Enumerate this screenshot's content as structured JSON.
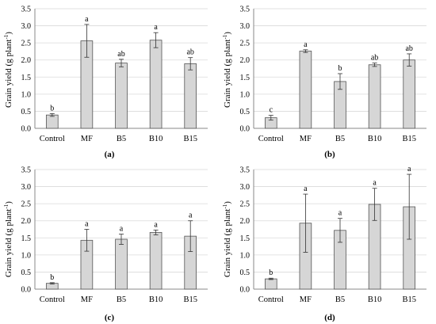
{
  "figure": {
    "panels": [
      {
        "label": "(a)",
        "ylabel_main": "Grain yield (g plant",
        "ylabel_sup": "-1",
        "ylabel_close": ")"
      },
      {
        "label": "(b)",
        "ylabel_main": "Grain yield (g plant",
        "ylabel_sup": "-1",
        "ylabel_close": ")"
      },
      {
        "label": "(c)",
        "ylabel_main": "Grain yield (g plant",
        "ylabel_sup": "-1",
        "ylabel_close": ")"
      },
      {
        "label": "(d)",
        "ylabel_main": "Grain yield (g plant",
        "ylabel_sup": "-1",
        "ylabel_close": ")"
      }
    ]
  },
  "colors": {
    "bar_fill": "#d6d6d6",
    "bar_stroke": "#555555",
    "axis": "#8a8a8a",
    "grid": "#d9d9d9",
    "text": "#000000"
  },
  "chart_data": [
    {
      "type": "bar",
      "categories": [
        "Control",
        "MF",
        "B5",
        "B10",
        "B15"
      ],
      "values": [
        0.39,
        2.56,
        1.91,
        2.58,
        1.89
      ],
      "errors": [
        0.04,
        0.48,
        0.11,
        0.22,
        0.18
      ],
      "letters": [
        "b",
        "a",
        "ab",
        "a",
        "ab"
      ],
      "ylim": [
        0,
        3.5
      ],
      "yticks": [
        "0.0",
        "0.5",
        "1.0",
        "1.5",
        "2.0",
        "2.5",
        "3.0",
        "3.5"
      ],
      "grid": true,
      "ylabel": "Grain yield (g plant-1)",
      "panel_label": "(a)"
    },
    {
      "type": "bar",
      "categories": [
        "Control",
        "MF",
        "B5",
        "B10",
        "B15"
      ],
      "values": [
        0.31,
        2.26,
        1.37,
        1.86,
        2.0
      ],
      "errors": [
        0.07,
        0.04,
        0.23,
        0.05,
        0.18
      ],
      "letters": [
        "c",
        "a",
        "b",
        "ab",
        "ab"
      ],
      "ylim": [
        0,
        3.5
      ],
      "yticks": [
        "0.0",
        "0.5",
        "1.0",
        "1.5",
        "2.0",
        "2.5",
        "3.0",
        "3.5"
      ],
      "grid": true,
      "ylabel": "Grain yield (g plant-1)",
      "panel_label": "(b)"
    },
    {
      "type": "bar",
      "categories": [
        "Control",
        "MF",
        "B5",
        "B10",
        "B15"
      ],
      "values": [
        0.17,
        1.43,
        1.46,
        1.66,
        1.55
      ],
      "errors": [
        0.02,
        0.32,
        0.15,
        0.07,
        0.45
      ],
      "letters": [
        "b",
        "a",
        "a",
        "a",
        "a"
      ],
      "ylim": [
        0,
        3.5
      ],
      "yticks": [
        "0.0",
        "0.5",
        "1.0",
        "1.5",
        "2.0",
        "2.5",
        "3.0",
        "3.5"
      ],
      "grid": true,
      "ylabel": "Grain yield (g plant-1)",
      "panel_label": "(c)"
    },
    {
      "type": "bar",
      "categories": [
        "Control",
        "MF",
        "B5",
        "B10",
        "B15"
      ],
      "values": [
        0.3,
        1.93,
        1.72,
        2.48,
        2.41
      ],
      "errors": [
        0.02,
        0.85,
        0.35,
        0.47,
        0.95
      ],
      "letters": [
        "b",
        "a",
        "a",
        "a",
        "a"
      ],
      "ylim": [
        0,
        3.5
      ],
      "yticks": [
        "0.0",
        "0.5",
        "1.0",
        "1.5",
        "2.0",
        "2.5",
        "3.0",
        "3.5"
      ],
      "grid": true,
      "ylabel": "Grain yield (g plant-1)",
      "panel_label": "(d)"
    }
  ]
}
